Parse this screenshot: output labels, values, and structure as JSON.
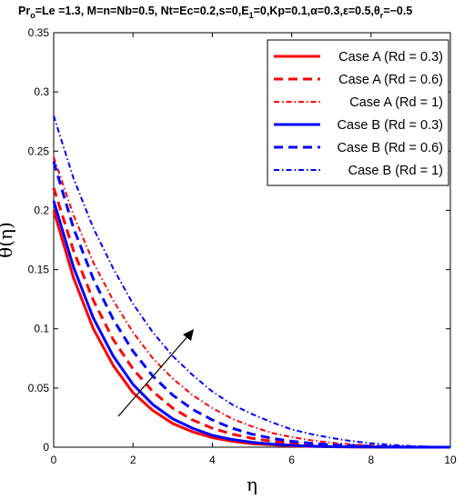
{
  "chart_data": {
    "type": "line",
    "title": "Pr",
    "title_sub": "o",
    "title_rest": "=Le =1.3, M=n=Nb=0.5, Nt=Ec=0.2,s=0,E",
    "title_sub2": "1",
    "title_rest2": "=0,Kp=0.1,α=0.3,ε=0.5,θ",
    "title_sub3": "r",
    "title_rest3": "=−0.5",
    "xlabel": "η",
    "ylabel": "θ(η)",
    "xlim": [
      0,
      10
    ],
    "ylim": [
      0,
      0.35
    ],
    "xticks": [
      0,
      2,
      4,
      6,
      8,
      10
    ],
    "xtick_labels": [
      "0",
      "2",
      "4",
      "6",
      "8",
      "10"
    ],
    "yticks": [
      0,
      0.05,
      0.1,
      0.15,
      0.2,
      0.25,
      0.3,
      0.35
    ],
    "ytick_labels": [
      "0",
      "0.05",
      "0.1",
      "0.15",
      "0.2",
      "0.25",
      "0.3",
      "0.35"
    ],
    "grid": false,
    "legend_position": "top-right",
    "annotation": "arrow indicating increasing Rd",
    "x": [
      0,
      0.5,
      1,
      1.5,
      2,
      2.5,
      3,
      3.5,
      4,
      4.5,
      5,
      5.5,
      6,
      6.5,
      7,
      7.5,
      8,
      8.5,
      9,
      9.5,
      10
    ],
    "series": [
      {
        "name": "Case A (Rd = 0.3)",
        "color": "#ff0000",
        "dash": "solid",
        "values": [
          0.2,
          0.143,
          0.1,
          0.069,
          0.046,
          0.031,
          0.02,
          0.013,
          0.008,
          0.005,
          0.003,
          0.002,
          0.0012,
          0.0007,
          0.0004,
          0.0002,
          0.0001,
          5e-05,
          2e-05,
          1e-05,
          0
        ]
      },
      {
        "name": "Case A (Rd = 0.6)",
        "color": "#ff0000",
        "dash": "dashed",
        "values": [
          0.219,
          0.166,
          0.124,
          0.091,
          0.066,
          0.047,
          0.033,
          0.023,
          0.016,
          0.011,
          0.0075,
          0.005,
          0.0033,
          0.002,
          0.0012,
          0.0007,
          0.0004,
          0.0002,
          0.0001,
          4e-05,
          0
        ]
      },
      {
        "name": "Case A (Rd = 1)",
        "color": "#ff0000",
        "dash": "dashdot",
        "values": [
          0.245,
          0.196,
          0.156,
          0.124,
          0.097,
          0.075,
          0.058,
          0.044,
          0.033,
          0.024,
          0.0175,
          0.012,
          0.0085,
          0.0058,
          0.0038,
          0.0024,
          0.0014,
          0.0008,
          0.0004,
          0.0001,
          0
        ]
      },
      {
        "name": "Case B (Rd = 0.3)",
        "color": "#0000ff",
        "dash": "solid",
        "values": [
          0.208,
          0.152,
          0.109,
          0.077,
          0.053,
          0.036,
          0.024,
          0.016,
          0.01,
          0.0065,
          0.0041,
          0.0026,
          0.0016,
          0.0009,
          0.0005,
          0.0003,
          0.00015,
          7e-05,
          3e-05,
          1e-05,
          0
        ]
      },
      {
        "name": "Case B (Rd = 0.6)",
        "color": "#0000ff",
        "dash": "dashed",
        "values": [
          0.241,
          0.185,
          0.142,
          0.108,
          0.081,
          0.06,
          0.044,
          0.032,
          0.023,
          0.016,
          0.011,
          0.0075,
          0.005,
          0.0033,
          0.0021,
          0.0013,
          0.0008,
          0.0004,
          0.0002,
          0.0001,
          0
        ]
      },
      {
        "name": "Case B (Rd = 1)",
        "color": "#0000ff",
        "dash": "dashdot",
        "values": [
          0.28,
          0.227,
          0.185,
          0.151,
          0.121,
          0.097,
          0.077,
          0.061,
          0.047,
          0.036,
          0.028,
          0.021,
          0.015,
          0.011,
          0.0078,
          0.0052,
          0.0033,
          0.002,
          0.001,
          0.0004,
          0
        ]
      }
    ]
  }
}
